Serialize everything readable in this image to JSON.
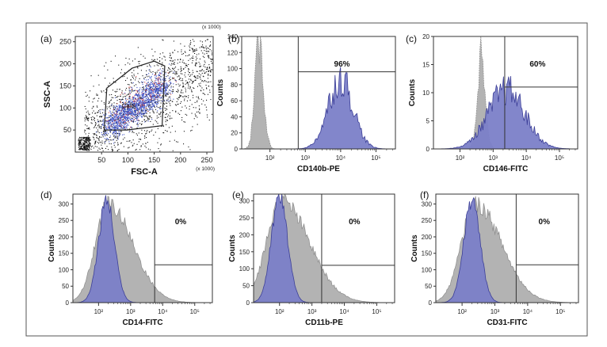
{
  "figure": {
    "panels": [
      {
        "label": "(a)",
        "type": "scatter",
        "xlabel": "FSC-A",
        "ylabel": "SSC-A",
        "x_unit": "(x 1000)",
        "y_unit": "(x 1000)",
        "xticks": [
          "50",
          "100",
          "150",
          "200",
          "250"
        ],
        "yticks": [
          "50",
          "100",
          "150",
          "200",
          "250"
        ],
        "xlim": [
          0,
          262
        ],
        "ylim": [
          0,
          262
        ],
        "gate_label": "Cells",
        "gate_polygon": [
          [
            55,
            50
          ],
          [
            60,
            145
          ],
          [
            108,
            190
          ],
          [
            150,
            206
          ],
          [
            170,
            195
          ],
          [
            165,
            60
          ],
          [
            98,
            50
          ]
        ]
      },
      {
        "label": "(b)",
        "type": "histogram",
        "xlabel": "CD140b-PE",
        "ylabel": "Counts",
        "xticks": [
          "10²",
          "10³",
          "10⁴",
          "10⁵"
        ],
        "yticks": [
          "0",
          "20",
          "40",
          "60",
          "80",
          "100",
          "120",
          "140"
        ],
        "ylim": [
          0,
          140
        ],
        "percent": "96%",
        "gate_start_decade": 2.8,
        "gate_line_y": 96,
        "control": {
          "peak_decade": 1.7,
          "peak": 135,
          "width": 0.12
        },
        "stained": {
          "peak_decade": 4.0,
          "peak": 88,
          "width": 0.35
        }
      },
      {
        "label": "(c)",
        "type": "histogram",
        "xlabel": "CD146-FITC",
        "ylabel": "Counts",
        "xticks": [
          "10²",
          "10³",
          "10⁴",
          "10⁵"
        ],
        "yticks": [
          "0",
          "5",
          "10",
          "15",
          "20"
        ],
        "ylim": [
          0,
          20
        ],
        "percent": "60%",
        "gate_start_decade": 3.35,
        "gate_line_y": 11,
        "control": {
          "peak_decade": 2.65,
          "peak": 17,
          "width": 0.12
        },
        "stained": {
          "peak_decade": 3.4,
          "peak": 10.5,
          "width": 0.55
        }
      },
      {
        "label": "(d)",
        "type": "histogram",
        "xlabel": "CD14-FITC",
        "ylabel": "Counts",
        "xticks": [
          "10²",
          "10³",
          "10⁴",
          "10⁵"
        ],
        "yticks": [
          "0",
          "50",
          "100",
          "150",
          "200",
          "250",
          "300"
        ],
        "ylim": [
          0,
          330
        ],
        "percent": "0%",
        "gate_start_decade": 3.75,
        "gate_line_y": 115,
        "control": {
          "peak_decade": 2.3,
          "peak": 300,
          "width": 0.4
        },
        "stained": {
          "peak_decade": 2.25,
          "peak": 310,
          "width": 0.25
        }
      },
      {
        "label": "(e)",
        "type": "histogram",
        "xlabel": "CD11b-PE",
        "ylabel": "Counts",
        "xticks": [
          "10²",
          "10³",
          "10⁴",
          "10⁵"
        ],
        "yticks": [
          "0",
          "50",
          "100",
          "150",
          "200",
          "250",
          "300"
        ],
        "ylim": [
          0,
          320
        ],
        "percent": "0%",
        "gate_start_decade": 3.3,
        "gate_line_y": 110,
        "control": {
          "peak_decade": 2.05,
          "peak": 300,
          "width": 0.45
        },
        "stained": {
          "peak_decade": 2.0,
          "peak": 310,
          "width": 0.25
        }
      },
      {
        "label": "(f)",
        "type": "histogram",
        "xlabel": "CD31-FITC",
        "ylabel": "Counts",
        "xticks": [
          "10²",
          "10³",
          "10⁴",
          "10⁵"
        ],
        "yticks": [
          "0",
          "50",
          "100",
          "150",
          "200",
          "250",
          "300"
        ],
        "ylim": [
          0,
          330
        ],
        "percent": "0%",
        "gate_start_decade": 3.65,
        "gate_line_y": 115,
        "control": {
          "peak_decade": 2.4,
          "peak": 300,
          "width": 0.42
        },
        "stained": {
          "peak_decade": 2.3,
          "peak": 310,
          "width": 0.25
        }
      }
    ]
  },
  "chart_data": [
    {
      "type": "scatter",
      "title": "(a)",
      "xlabel": "FSC-A",
      "ylabel": "SSC-A",
      "xlim": [
        0,
        262
      ],
      "ylim": [
        0,
        262
      ],
      "annotation": "Cells"
    },
    {
      "type": "bar",
      "title": "(b)",
      "xlabel": "CD140b-PE",
      "ylabel": "Counts",
      "ylim": [
        0,
        140
      ],
      "annotation": "96%"
    },
    {
      "type": "bar",
      "title": "(c)",
      "xlabel": "CD146-FITC",
      "ylabel": "Counts",
      "ylim": [
        0,
        20
      ],
      "annotation": "60%"
    },
    {
      "type": "bar",
      "title": "(d)",
      "xlabel": "CD14-FITC",
      "ylabel": "Counts",
      "ylim": [
        0,
        330
      ],
      "annotation": "0%"
    },
    {
      "type": "bar",
      "title": "(e)",
      "xlabel": "CD11b-PE",
      "ylabel": "Counts",
      "ylim": [
        0,
        320
      ],
      "annotation": "0%"
    },
    {
      "type": "bar",
      "title": "(f)",
      "xlabel": "CD31-FITC",
      "ylabel": "Counts",
      "ylim": [
        0,
        330
      ],
      "annotation": "0%"
    }
  ],
  "colors": {
    "frame": "#555555",
    "control_fill": "#b3b3b3",
    "control_line": "#8c8c8c",
    "stained_fill": "#7b80c8",
    "stained_line": "#3c3f98",
    "scatter_black": "#111111",
    "scatter_blue": "#3b50c8",
    "scatter_red": "#d04040"
  }
}
